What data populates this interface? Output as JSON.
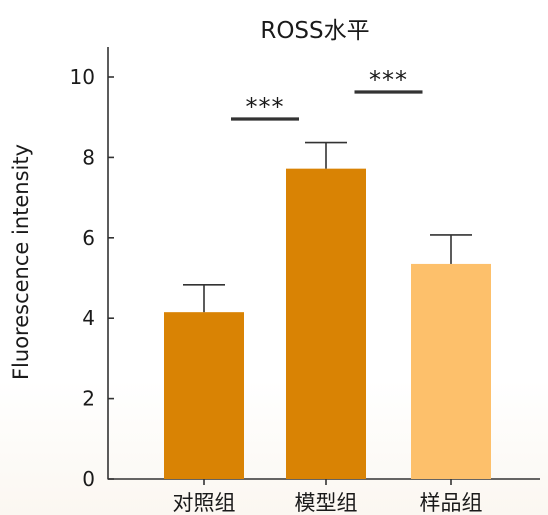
{
  "chart_data": {
    "type": "bar",
    "title": "ROSS水平",
    "xlabel": "",
    "ylabel": "Fluorescence intensity",
    "categories": [
      "对照组",
      "模型组",
      "样品组"
    ],
    "values": [
      4.15,
      7.72,
      5.35
    ],
    "errors": [
      0.68,
      0.65,
      0.72
    ],
    "colors": [
      "#d98304",
      "#d98304",
      "#fdc06b"
    ],
    "ylim": [
      0,
      10
    ],
    "yticks": [
      "0",
      "2",
      "4",
      "6",
      "8",
      "10"
    ],
    "significance": [
      {
        "bars": [
          0,
          1
        ],
        "label": "***"
      },
      {
        "bars": [
          1,
          2
        ],
        "label": "***"
      }
    ],
    "grid": false
  }
}
